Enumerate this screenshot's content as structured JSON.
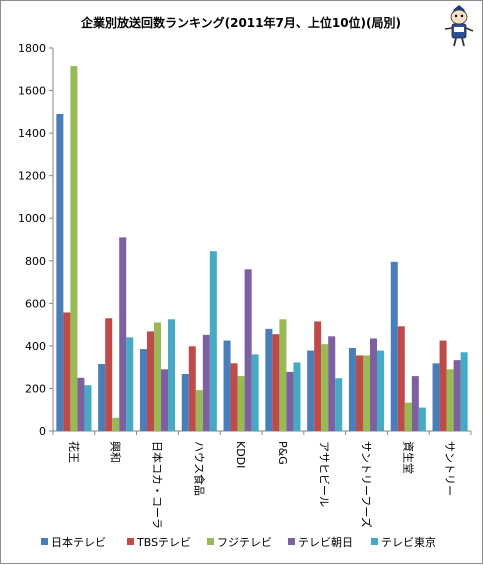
{
  "chart_data": {
    "type": "bar",
    "title": "企業別放送回数ランキング(2011年7月、上位10位)(局別)",
    "categories": [
      "花王",
      "興和",
      "日本コカ・コーラ",
      "ハウス食品",
      "KDDI",
      "P&G",
      "アサヒビール",
      "サントリーフーズ",
      "資生堂",
      "サントリー"
    ],
    "series": [
      {
        "name": "日本テレビ",
        "color": "#4a7ebb",
        "values": [
          1490,
          315,
          385,
          268,
          425,
          480,
          378,
          390,
          795,
          318
        ]
      },
      {
        "name": "TBSテレビ",
        "color": "#be4b48",
        "values": [
          557,
          530,
          468,
          398,
          318,
          455,
          515,
          355,
          492,
          425
        ]
      },
      {
        "name": "フジテレビ",
        "color": "#98b954",
        "values": [
          1715,
          62,
          510,
          192,
          258,
          525,
          408,
          355,
          133,
          290
        ]
      },
      {
        "name": "テレビ朝日",
        "color": "#7d60a0",
        "values": [
          250,
          910,
          290,
          452,
          760,
          278,
          445,
          435,
          258,
          333
        ]
      },
      {
        "name": "テレビ東京",
        "color": "#46aac5",
        "values": [
          215,
          440,
          525,
          845,
          360,
          322,
          248,
          378,
          110,
          370
        ]
      }
    ],
    "ylim": [
      0,
      1800
    ],
    "yticks": [
      0,
      200,
      400,
      600,
      800,
      1000,
      1200,
      1400,
      1600,
      1800
    ],
    "grid": false,
    "legend": "bottom",
    "decoration": "mascot-icon"
  }
}
